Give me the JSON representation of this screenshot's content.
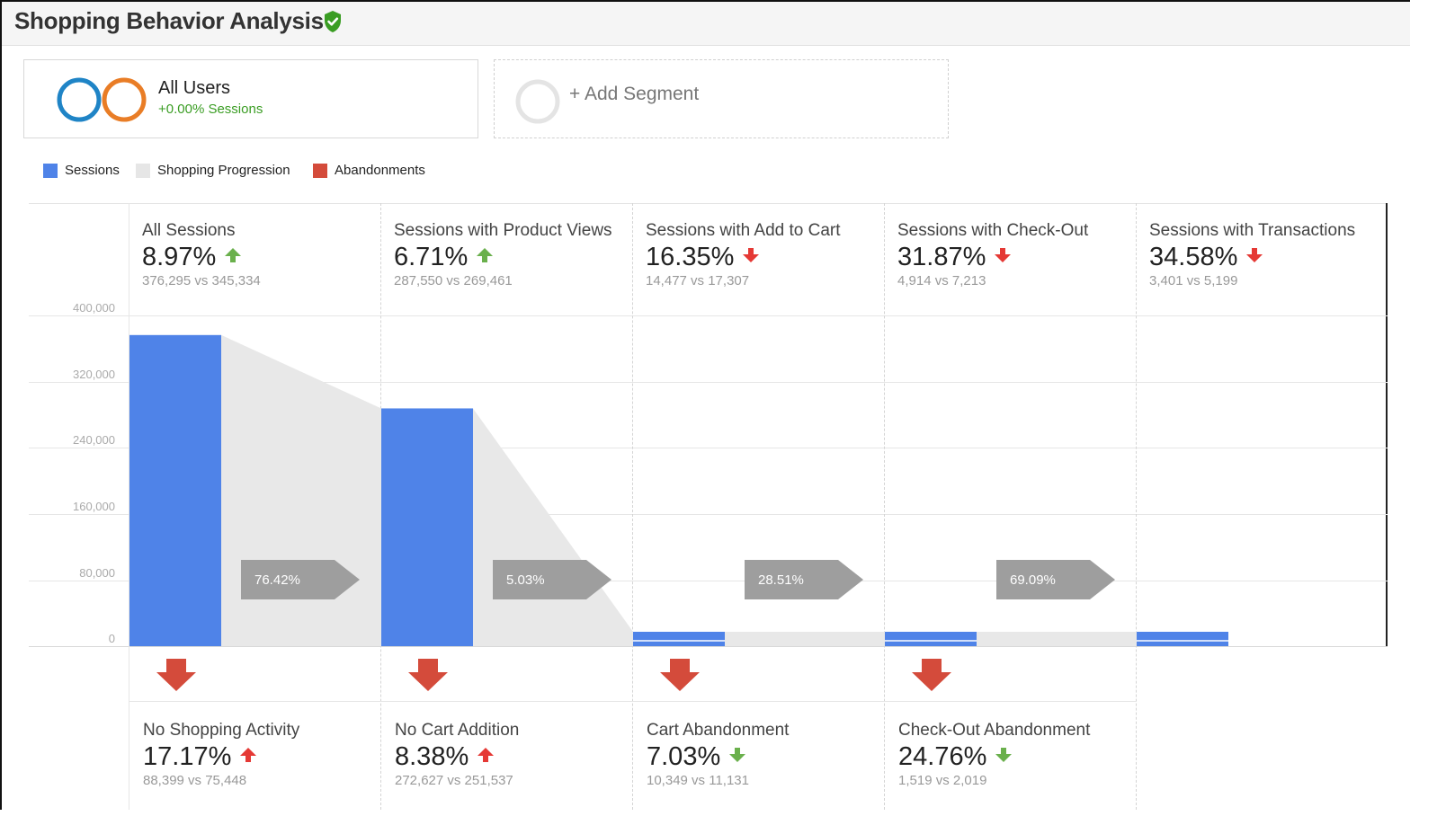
{
  "header": {
    "title": "Shopping Behavior Analysis",
    "verified_icon": "shield-check-icon",
    "verified_color": "#3a9d23"
  },
  "segments": {
    "primary": {
      "name": "All Users",
      "sub": "+0.00% Sessions",
      "ring_colors": [
        "#1f84c6",
        "#e97d26"
      ]
    },
    "add": {
      "label": "+ Add Segment"
    }
  },
  "legend": [
    {
      "label": "Sessions",
      "color": "#4f83e8"
    },
    {
      "label": "Shopping Progression",
      "color": "#e6e6e6"
    },
    {
      "label": "Abandonments",
      "color": "#d44b3b"
    }
  ],
  "axis": {
    "ticks": [
      "400,000",
      "320,000",
      "240,000",
      "160,000",
      "80,000",
      "0"
    ]
  },
  "stages": [
    {
      "name": "All Sessions",
      "pct": "8.97%",
      "direction": "up",
      "compare": "376,295 vs 345,334",
      "sessions": 376295
    },
    {
      "name": "Sessions with Product Views",
      "pct": "6.71%",
      "direction": "up",
      "compare": "287,550 vs 269,461",
      "sessions": 287550
    },
    {
      "name": "Sessions with Add to Cart",
      "pct": "16.35%",
      "direction": "down",
      "compare": "14,477 vs 17,307",
      "sessions": 14477
    },
    {
      "name": "Sessions with Check-Out",
      "pct": "31.87%",
      "direction": "down",
      "compare": "4,914 vs 7,213",
      "sessions": 4914
    },
    {
      "name": "Sessions with Transactions",
      "pct": "34.58%",
      "direction": "down",
      "compare": "3,401 vs 5,199",
      "sessions": 3401
    }
  ],
  "conversion_rates": [
    "76.42%",
    "5.03%",
    "28.51%",
    "69.09%"
  ],
  "abandonments": [
    {
      "name": "No Shopping Activity",
      "pct": "17.17%",
      "direction": "up",
      "compare": "88,399 vs 75,448"
    },
    {
      "name": "No Cart Addition",
      "pct": "8.38%",
      "direction": "up",
      "compare": "272,627 vs 251,537"
    },
    {
      "name": "Cart Abandonment",
      "pct": "7.03%",
      "direction": "down",
      "compare": "10,349 vs 11,131"
    },
    {
      "name": "Check-Out Abandonment",
      "pct": "24.76%",
      "direction": "down",
      "compare": "1,519 vs 2,019"
    }
  ],
  "colors": {
    "up_good": "#6ab04c",
    "down_bad": "#e53935",
    "up_bad": "#e53935",
    "down_good": "#6ab04c",
    "bar": "#4f83e8",
    "progression": "#e8e8e8",
    "rate_label_bg": "#9e9e9e",
    "abandon_arrow": "#d44b3b"
  },
  "chart_data": {
    "type": "bar",
    "categories": [
      "All Sessions",
      "Sessions with Product Views",
      "Sessions with Add to Cart",
      "Sessions with Check-Out",
      "Sessions with Transactions"
    ],
    "values": [
      376295,
      287550,
      14477,
      4914,
      3401
    ],
    "ylim": [
      0,
      400000
    ],
    "yticks": [
      0,
      80000,
      160000,
      240000,
      320000,
      400000
    ],
    "grid": true,
    "legend_position": "top-left"
  }
}
